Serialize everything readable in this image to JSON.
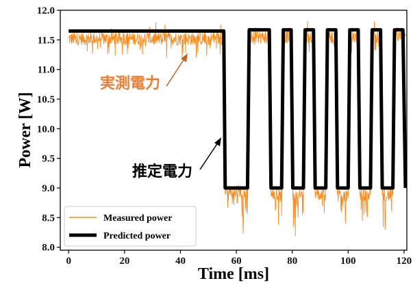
{
  "chart_data": {
    "type": "line",
    "title": "",
    "xlabel": "Time [ms]",
    "ylabel": "Power [W]",
    "xlim": [
      -3,
      121
    ],
    "ylim": [
      7.95,
      12.0
    ],
    "x_ticks": [
      0,
      20,
      40,
      60,
      80,
      100,
      120
    ],
    "y_ticks": [
      8.0,
      8.5,
      9.0,
      9.5,
      10.0,
      10.5,
      11.0,
      11.5,
      12.0
    ],
    "grid": false,
    "legend_position": "lower-left",
    "series": [
      {
        "name": "Measured power",
        "color": "#ff8c1a",
        "style": "thin noisy line",
        "x": [
          0,
          55.5,
          56.0,
          64.0,
          64.6,
          71.8,
          72.4,
          76.2,
          76.8,
          79.6,
          80.2,
          84.0,
          84.6,
          87.6,
          88.2,
          92.0,
          92.6,
          95.6,
          96.2,
          100.0,
          100.6,
          103.6,
          104.2,
          108.0,
          108.6,
          111.6,
          112.2,
          116.0,
          116.6,
          119.6,
          120.5
        ],
        "values": [
          11.52,
          11.52,
          8.95,
          8.95,
          11.55,
          11.55,
          8.88,
          8.88,
          11.55,
          11.55,
          8.88,
          8.88,
          11.55,
          11.55,
          8.88,
          8.88,
          11.55,
          11.55,
          8.88,
          8.88,
          11.55,
          11.55,
          8.88,
          8.88,
          11.55,
          11.55,
          8.88,
          8.88,
          11.55,
          11.55,
          8.88
        ],
        "min_spike": 8.03
      },
      {
        "name": "Predicted power",
        "color": "#000000",
        "style": "thick line",
        "x": [
          0,
          55.5,
          56.0,
          64.0,
          64.6,
          71.8,
          72.4,
          76.2,
          76.8,
          79.6,
          80.2,
          84.0,
          84.6,
          87.6,
          88.2,
          92.0,
          92.6,
          95.6,
          96.2,
          100.0,
          100.6,
          103.6,
          104.2,
          108.0,
          108.6,
          111.6,
          112.2,
          116.0,
          116.6,
          119.6,
          120.5
        ],
        "values": [
          11.65,
          11.65,
          9.0,
          9.0,
          11.67,
          11.67,
          9.0,
          9.0,
          11.67,
          11.67,
          9.0,
          9.0,
          11.67,
          11.67,
          9.0,
          9.0,
          11.67,
          11.67,
          9.0,
          9.0,
          11.67,
          11.67,
          9.0,
          9.0,
          11.67,
          11.67,
          9.0,
          9.0,
          11.67,
          11.67,
          9.0
        ]
      }
    ],
    "annotations": [
      {
        "text": "実測電力",
        "color": "#ee7d31",
        "arrow_color": "#c26224"
      },
      {
        "text": "推定電力",
        "color": "#000000",
        "arrow_color": "#000000"
      }
    ]
  }
}
